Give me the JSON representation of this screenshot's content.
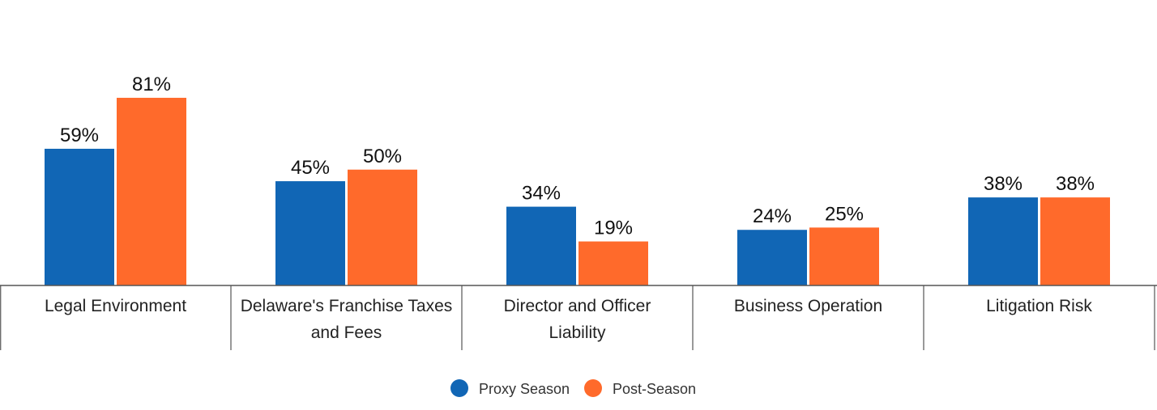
{
  "chart_data": {
    "type": "bar",
    "categories": [
      [
        "Legal Environment"
      ],
      [
        "Delaware's Franchise Taxes",
        "and Fees"
      ],
      [
        "Director and Officer",
        "Liability"
      ],
      [
        "Business Operation"
      ],
      [
        "Litigation Risk"
      ]
    ],
    "series": [
      {
        "name": "Proxy Season",
        "color": "#1166B5",
        "values": [
          59,
          45,
          34,
          24,
          38
        ]
      },
      {
        "name": "Post-Season",
        "color": "#FF6A2B",
        "values": [
          81,
          50,
          19,
          25,
          38
        ]
      }
    ],
    "value_suffix": "%",
    "ylim": [
      0,
      100
    ],
    "grid": false,
    "legend_position": "bottom-center"
  }
}
